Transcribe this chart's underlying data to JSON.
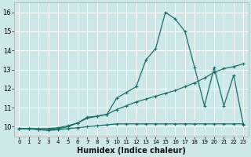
{
  "xlabel": "Humidex (Indice chaleur)",
  "bg_color": "#cce8e8",
  "grid_color": "#ffffff",
  "line_color": "#1a6e6a",
  "xlim": [
    -0.5,
    23.5
  ],
  "ylim": [
    9.5,
    16.5
  ],
  "yticks": [
    10,
    11,
    12,
    13,
    14,
    15,
    16
  ],
  "xticks": [
    0,
    1,
    2,
    3,
    4,
    5,
    6,
    7,
    8,
    9,
    10,
    11,
    12,
    13,
    14,
    15,
    16,
    17,
    18,
    19,
    20,
    21,
    22,
    23
  ],
  "line1_x": [
    0,
    1,
    2,
    3,
    4,
    5,
    6,
    7,
    8,
    9,
    10,
    11,
    12,
    13,
    14,
    15,
    16,
    17,
    18,
    19,
    20,
    21,
    22,
    23
  ],
  "line1_y": [
    9.9,
    9.9,
    9.85,
    9.8,
    9.85,
    9.9,
    9.95,
    10.0,
    10.05,
    10.1,
    10.15,
    10.15,
    10.15,
    10.15,
    10.15,
    10.15,
    10.15,
    10.15,
    10.15,
    10.15,
    10.15,
    10.15,
    10.15,
    10.15
  ],
  "line2_x": [
    0,
    1,
    2,
    3,
    4,
    5,
    6,
    7,
    8,
    9,
    10,
    11,
    12,
    13,
    14,
    15,
    16,
    17,
    18,
    19,
    20,
    21,
    22,
    23
  ],
  "line2_y": [
    9.9,
    9.9,
    9.9,
    9.9,
    9.95,
    10.05,
    10.2,
    10.45,
    10.55,
    10.65,
    10.9,
    11.1,
    11.3,
    11.45,
    11.6,
    11.75,
    11.9,
    12.1,
    12.3,
    12.55,
    12.85,
    13.05,
    13.15,
    13.3
  ],
  "line3_x": [
    0,
    1,
    2,
    3,
    4,
    5,
    6,
    7,
    8,
    9,
    10,
    11,
    12,
    13,
    14,
    15,
    16,
    17,
    18,
    19,
    20,
    21,
    22,
    23
  ],
  "line3_y": [
    9.9,
    9.9,
    9.85,
    9.85,
    9.9,
    10.0,
    10.2,
    10.5,
    10.55,
    10.65,
    11.5,
    11.8,
    12.1,
    13.5,
    14.1,
    16.0,
    15.65,
    15.0,
    13.1,
    11.1,
    13.1,
    11.1,
    12.7,
    10.1
  ]
}
